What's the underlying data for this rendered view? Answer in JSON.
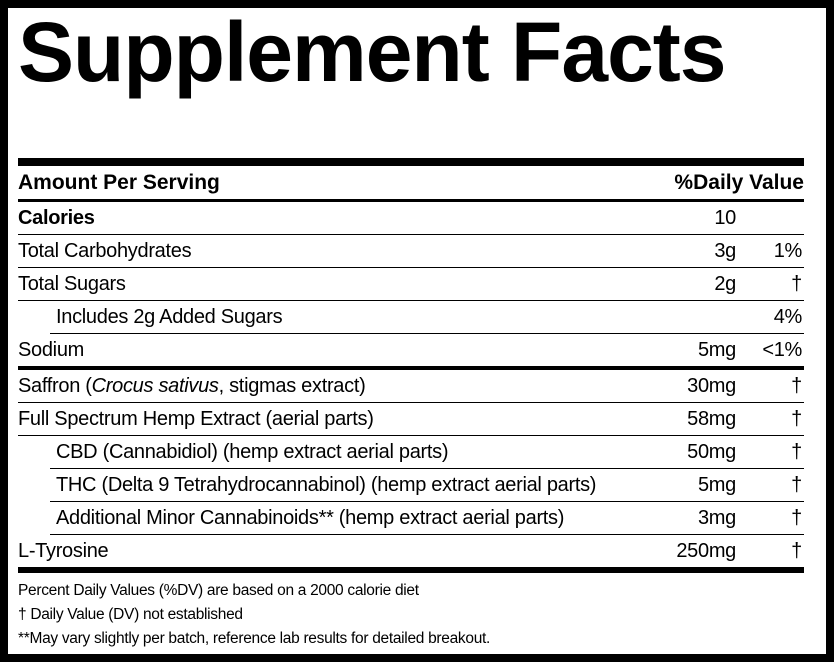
{
  "title": "Supplement Facts",
  "header": {
    "amount": "Amount Per Serving",
    "daily_value": "%Daily Value"
  },
  "sections": [
    {
      "rows": [
        {
          "name": [
            "Calories"
          ],
          "amount": "10",
          "bold": true
        },
        {
          "name": [
            "Total Carbohydrates"
          ],
          "amount": "3g",
          "daily_value": "1%"
        },
        {
          "name": [
            "Total Sugars"
          ],
          "amount": "2g",
          "daily_value": "†"
        },
        {
          "name": [
            "Includes 2g Added Sugars"
          ],
          "daily_value": "4%",
          "indent": true
        },
        {
          "name": [
            "Sodium"
          ],
          "amount": "5mg",
          "daily_value": "<1%"
        }
      ]
    },
    {
      "rows": [
        {
          "name": [
            "Saffron (",
            "Crocus sativus",
            ", stigmas extract)"
          ],
          "italic_part": 1,
          "amount": "30mg",
          "daily_value": "†"
        },
        {
          "name": [
            "Full Spectrum Hemp Extract (aerial parts)"
          ],
          "amount": "58mg",
          "daily_value": "†"
        },
        {
          "name": [
            "CBD (Cannabidiol) (hemp extract aerial parts)"
          ],
          "amount": "50mg",
          "daily_value": "†",
          "indent": true
        },
        {
          "name": [
            "THC (Delta 9 Tetrahydrocannabinol) (hemp extract aerial parts)"
          ],
          "amount": "5mg",
          "daily_value": "†",
          "indent": true
        },
        {
          "name": [
            "Additional Minor Cannabinoids** (hemp extract aerial parts)"
          ],
          "amount": "3mg",
          "daily_value": "†",
          "indent": true
        },
        {
          "name": [
            "L-Tyrosine"
          ],
          "amount": "250mg",
          "daily_value": "†"
        }
      ]
    }
  ],
  "footnotes": [
    "Percent Daily Values (%DV) are based on a 2000 calorie diet",
    "† Daily Value (DV) not established",
    "**May vary slightly per batch, reference lab results for detailed breakout."
  ]
}
